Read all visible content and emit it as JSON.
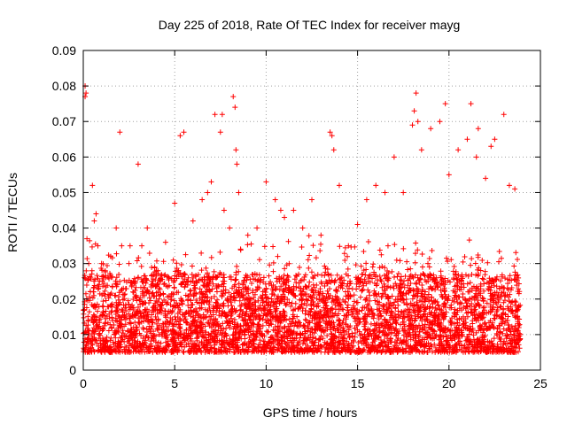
{
  "chart_data": {
    "type": "scatter",
    "title": "Day 225 of 2018, Rate Of TEC Index for receiver mayg",
    "xlabel": "GPS time / hours",
    "ylabel": "ROTI / TECUs",
    "xlim": [
      0,
      25
    ],
    "ylim": [
      0,
      0.09
    ],
    "xticks": [
      0,
      5,
      10,
      15,
      20,
      25
    ],
    "xtick_labels": [
      "0",
      "5",
      "10",
      "15",
      "20",
      "25"
    ],
    "yticks": [
      0,
      0.01,
      0.02,
      0.03,
      0.04,
      0.05,
      0.06,
      0.07,
      0.08,
      0.09
    ],
    "ytick_labels": [
      "0",
      "0.01",
      "0.02",
      "0.03",
      "0.04",
      "0.05",
      "0.06",
      "0.07",
      "0.08",
      "0.09"
    ],
    "grid": true,
    "marker": "+",
    "color": "#ff0000",
    "dense_band": {
      "x_start": 0,
      "x_end": 23.9,
      "y_low": 0.005,
      "y_high": 0.027,
      "approx_points": 4500
    },
    "series": [
      {
        "name": "ROTI",
        "x": [
          0.1,
          0.1,
          0.15,
          0.2,
          0.3,
          0.5,
          0.6,
          0.7,
          0.8,
          1.0,
          1.2,
          1.5,
          1.8,
          2.0,
          2.1,
          2.5,
          3.0,
          3.2,
          3.5,
          4.0,
          4.5,
          5.0,
          5.3,
          5.5,
          6.0,
          6.5,
          6.8,
          7.0,
          7.2,
          7.5,
          7.6,
          7.7,
          8.0,
          8.2,
          8.3,
          8.35,
          8.4,
          8.5,
          9.0,
          9.5,
          10.0,
          10.5,
          10.8,
          11.0,
          11.5,
          12.0,
          12.5,
          13.0,
          13.5,
          13.6,
          13.7,
          14.0,
          14.5,
          15.0,
          15.5,
          16.0,
          16.5,
          17.0,
          17.5,
          18.0,
          18.1,
          18.2,
          18.3,
          18.5,
          19.0,
          19.5,
          19.8,
          20.0,
          20.5,
          21.0,
          21.2,
          21.5,
          21.6,
          22.0,
          22.3,
          22.5,
          23.0,
          23.3,
          23.6
        ],
        "y": [
          0.077,
          0.08,
          0.078,
          0.037,
          0.03,
          0.052,
          0.042,
          0.044,
          0.035,
          0.03,
          0.028,
          0.032,
          0.04,
          0.067,
          0.035,
          0.03,
          0.058,
          0.035,
          0.04,
          0.028,
          0.036,
          0.047,
          0.066,
          0.067,
          0.042,
          0.048,
          0.05,
          0.053,
          0.072,
          0.067,
          0.072,
          0.045,
          0.04,
          0.077,
          0.074,
          0.062,
          0.058,
          0.05,
          0.038,
          0.04,
          0.053,
          0.048,
          0.045,
          0.043,
          0.045,
          0.04,
          0.048,
          0.038,
          0.067,
          0.066,
          0.062,
          0.052,
          0.035,
          0.041,
          0.048,
          0.052,
          0.05,
          0.06,
          0.05,
          0.069,
          0.073,
          0.078,
          0.07,
          0.062,
          0.068,
          0.07,
          0.075,
          0.055,
          0.062,
          0.065,
          0.075,
          0.06,
          0.068,
          0.054,
          0.063,
          0.065,
          0.072,
          0.052,
          0.051
        ]
      }
    ]
  }
}
